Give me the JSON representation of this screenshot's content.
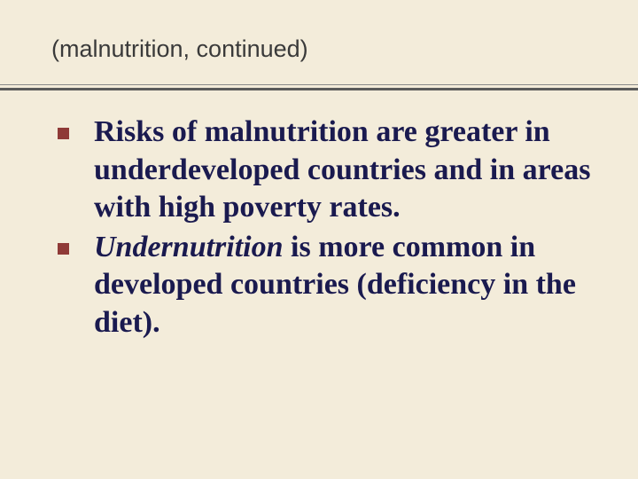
{
  "slide": {
    "title": "(malnutrition, continued)",
    "background_color": "#f3ecda",
    "title_color": "#3a3a3a",
    "title_fontsize": 27,
    "underline_color_top": "#8a8a8a",
    "underline_color_bottom": "#5a5a5a",
    "bullet_color": "#8f3a37",
    "bullet_size": 13,
    "text_color": "#1a1a4f",
    "text_fontsize": 34,
    "bullets": [
      {
        "parts": [
          {
            "text": "Risks of malnutrition are greater in underdeveloped countries and in areas with high poverty rates.",
            "italic": false
          }
        ]
      },
      {
        "parts": [
          {
            "text": "Undernutrition",
            "italic": true
          },
          {
            "text": " is more common in developed countries (deficiency in the diet).",
            "italic": false
          }
        ]
      }
    ]
  }
}
